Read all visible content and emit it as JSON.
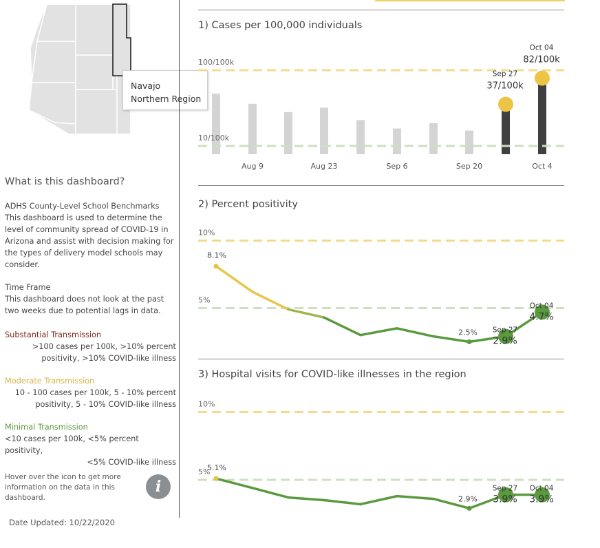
{
  "map": {
    "county": "Navajo",
    "region": "Northern Region"
  },
  "about": {
    "title": "What is this dashboard?",
    "benchmarks_heading": "ADHS County-Level School Benchmarks",
    "benchmarks_lines": [
      "This dashboard is used to determine the",
      "level of community spread of COVID-19 in",
      "Arizona and assist with decision making for",
      "the types of delivery model schools may",
      "consider."
    ],
    "timeframe_heading": "Time Frame",
    "timeframe_lines": [
      "This dashboard does not look at the past",
      "two weeks due to potential lags in data."
    ],
    "substantial_heading": "Substantial Transmission",
    "substantial_lines": [
      ">100 cases per 100k, >10% percent",
      "positivity, >10% COVID-like illness"
    ],
    "moderate_heading": "Moderate Transmission",
    "moderate_lines": [
      "10 - 100 cases per 100k, 5 - 10% percent",
      "positivity, 5 - 10% COVID-like illness"
    ],
    "minimal_heading": "Minimal Transmission",
    "minimal_lines": [
      "<10 cases per 100k, <5% percent positivity,",
      "<5% COVID-like illness"
    ],
    "hover_note": "Hover over the icon to get more information on the data in this dashboard.",
    "info_icon_label": "i",
    "date_updated": "Date Updated: 10/22/2020"
  },
  "colors": {
    "substantial": "#7a2a1c",
    "moderate": "#e8c64a",
    "minimal": "#5a9a3e",
    "bar_gray": "#d4d4d4",
    "bar_dark": "#404040"
  },
  "chart_data": [
    {
      "type": "bar",
      "title": "1) Cases per 100,000 individuals",
      "scale": "log",
      "thresholds": [
        {
          "label": "100/100k",
          "value": 100
        },
        {
          "label": "10/100k",
          "value": 10
        }
      ],
      "x_ticks": [
        "Aug 9",
        "Aug 23",
        "Sep 6",
        "Sep 20",
        "Oct 4"
      ],
      "values": [
        49,
        36,
        28,
        32,
        22,
        17,
        20,
        16,
        37,
        82
      ],
      "highlight_labels": [
        {
          "index": 8,
          "date": "Sep 27",
          "value": "37/100k"
        },
        {
          "index": 9,
          "date": "Oct 04",
          "value": "82/100k"
        }
      ]
    },
    {
      "type": "line",
      "title": "2) Percent positivity",
      "thresholds": [
        {
          "label": "10%",
          "value": 10
        },
        {
          "label": "5%",
          "value": 5
        }
      ],
      "values": [
        8.1,
        6.2,
        4.9,
        4.3,
        3.0,
        3.5,
        2.9,
        2.5,
        2.9,
        4.7
      ],
      "point_labels": [
        {
          "index": 0,
          "text": "8.1%"
        },
        {
          "index": 7,
          "text": "2.5%"
        }
      ],
      "highlight_labels": [
        {
          "index": 8,
          "date": "Sep 27",
          "value": "2.9%"
        },
        {
          "index": 9,
          "date": "Oct 04",
          "value": "4.7%"
        }
      ]
    },
    {
      "type": "line",
      "title": "3) Hospital visits for COVID-like illnesses in the region",
      "thresholds": [
        {
          "label": "10%",
          "value": 10
        },
        {
          "label": "5%",
          "value": 5
        }
      ],
      "values": [
        5.1,
        4.4,
        3.7,
        3.5,
        3.2,
        3.8,
        3.6,
        2.9,
        3.9,
        3.9
      ],
      "point_labels": [
        {
          "index": 0,
          "text": "5.1%"
        },
        {
          "index": 7,
          "text": "2.9%"
        }
      ],
      "highlight_labels": [
        {
          "index": 8,
          "date": "Sep 27",
          "value": "3.9%"
        },
        {
          "index": 9,
          "date": "Oct 04",
          "value": "3.9%"
        }
      ]
    }
  ]
}
